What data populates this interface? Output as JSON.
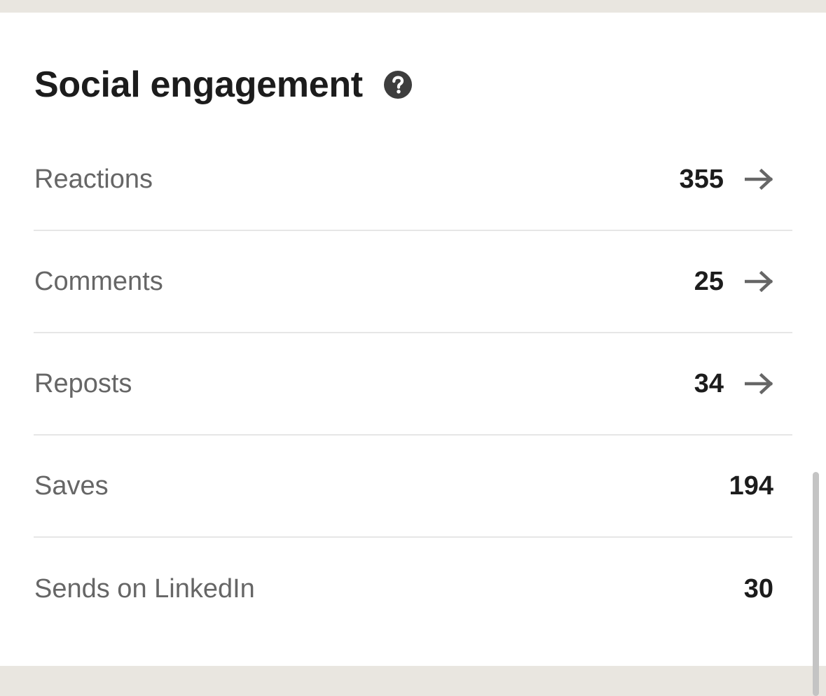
{
  "header": {
    "title": "Social engagement"
  },
  "metrics": [
    {
      "label": "Reactions",
      "value": "355",
      "has_arrow": true
    },
    {
      "label": "Comments",
      "value": "25",
      "has_arrow": true
    },
    {
      "label": "Reposts",
      "value": "34",
      "has_arrow": true
    },
    {
      "label": "Saves",
      "value": "194",
      "has_arrow": false
    },
    {
      "label": "Sends on LinkedIn",
      "value": "30",
      "has_arrow": false
    }
  ],
  "icons": {
    "help": "question-circle-icon",
    "row_arrow": "arrow-right-icon"
  },
  "colors": {
    "page_background": "#e9e6e0",
    "card_background": "#ffffff",
    "title_text": "#1c1c1c",
    "label_text": "#666666",
    "value_text": "#1c1c1c",
    "divider": "#e6e6e6",
    "arrow": "#666666",
    "help_icon": "#3d3d3d",
    "scrollbar": "#c4c4c4"
  }
}
